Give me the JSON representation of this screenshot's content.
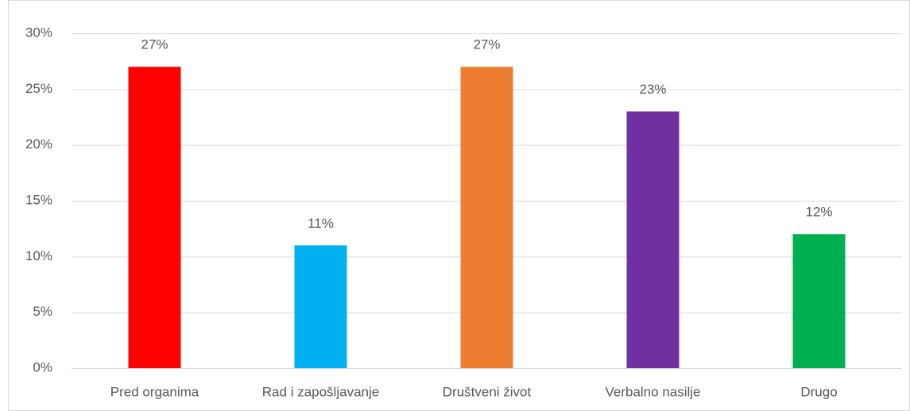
{
  "chart_data": {
    "type": "bar",
    "categories": [
      "Pred organima",
      "Rad i zapošljavanje",
      "Društveni život",
      "Verbalno nasilje",
      "Drugo"
    ],
    "values": [
      27,
      11,
      27,
      23,
      12
    ],
    "value_labels": [
      "27%",
      "11%",
      "27%",
      "23%",
      "12%"
    ],
    "colors": [
      "#ff0000",
      "#00b0f0",
      "#ed7d31",
      "#7030a0",
      "#00b050"
    ],
    "ylim": [
      0,
      30
    ],
    "yticks": [
      {
        "value": 0,
        "label": "0%"
      },
      {
        "value": 5,
        "label": "5%"
      },
      {
        "value": 10,
        "label": "10%"
      },
      {
        "value": 15,
        "label": "15%"
      },
      {
        "value": 20,
        "label": "20%"
      },
      {
        "value": 25,
        "label": "25%"
      },
      {
        "value": 30,
        "label": "30%"
      }
    ],
    "grid": true
  }
}
